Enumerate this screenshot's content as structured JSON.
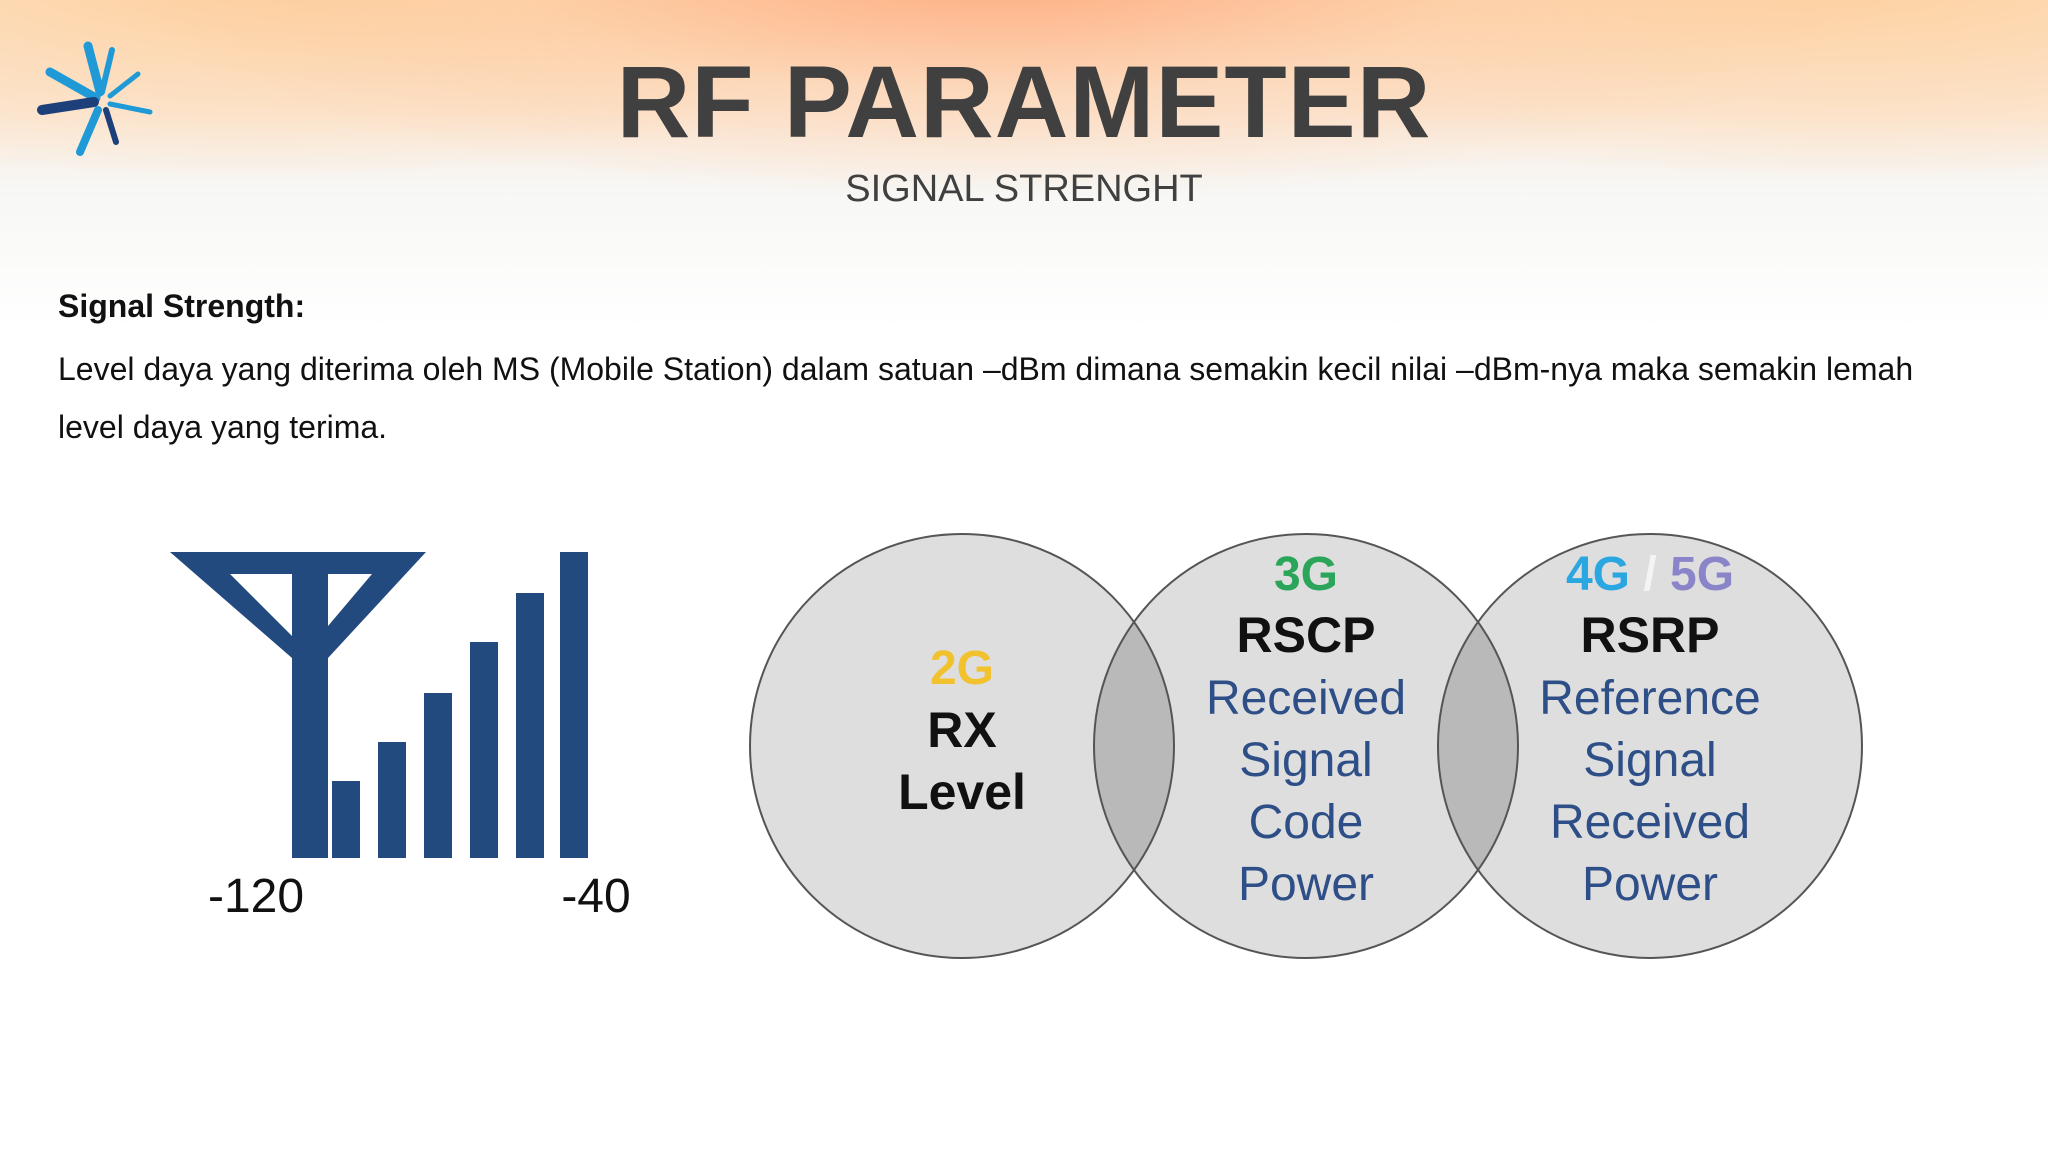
{
  "slide": {
    "title": "RF PARAMETER",
    "subtitle": "SIGNAL STRENGHT"
  },
  "body": {
    "heading": "Signal Strength:",
    "text": "Level daya yang diterima oleh MS (Mobile Station) dalam satuan –dBm dimana semakin kecil nilai –dBm-nya maka semakin lemah level daya yang terima."
  },
  "signal_graphic": {
    "icon": "antenna-signal-bars-icon",
    "color": "#234a7f",
    "min_label": "-120",
    "max_label": "-40"
  },
  "venn": {
    "circles": [
      {
        "gen": "2G",
        "gen_color": "#f2c12e",
        "title": "RX",
        "lines": [
          "Level"
        ]
      },
      {
        "gen": "3G",
        "gen_color": "#2aa55a",
        "title": "RSCP",
        "lines": [
          "Received",
          "Signal",
          "Code",
          "Power"
        ]
      },
      {
        "gen_a": "4G",
        "gen_a_color": "#2aa7e0",
        "separator": "/",
        "gen_b": "5G",
        "gen_b_color": "#8a84c9",
        "title": "RSRP",
        "lines": [
          "Reference",
          "Signal",
          "Received",
          "Power"
        ]
      }
    ],
    "line_color": "#2d4e86"
  }
}
